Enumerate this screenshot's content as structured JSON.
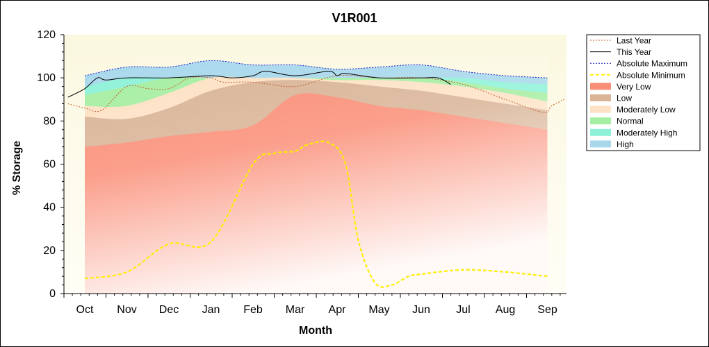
{
  "chart_data": {
    "type": "area",
    "title": "V1R001",
    "xlabel": "Month",
    "ylabel": "% Storage",
    "ylim": [
      0,
      120
    ],
    "yticks": [
      "0",
      "20",
      "40",
      "60",
      "80",
      "100",
      "120"
    ],
    "months": [
      "Oct",
      "Nov",
      "Dec",
      "Jan",
      "Feb",
      "Mar",
      "Apr",
      "May",
      "Jun",
      "Jul",
      "Aug",
      "Sep"
    ],
    "grid": false,
    "legend_placement": "right",
    "bands": [
      {
        "name": "Very Low",
        "color": "#fa8e77",
        "x": [
          0,
          1,
          2,
          3,
          4,
          5,
          6,
          7,
          8,
          9,
          10,
          11
        ],
        "values": [
          68,
          70,
          73,
          75,
          78,
          92,
          91,
          87,
          85,
          82,
          79,
          76
        ]
      },
      {
        "name": "Low",
        "color": "#d9b497",
        "x": [
          0,
          1,
          2,
          3,
          4,
          5,
          6,
          7,
          8,
          9,
          10,
          11
        ],
        "values": [
          82,
          81,
          86,
          94,
          98,
          99,
          98,
          96,
          94,
          91,
          88,
          85
        ]
      },
      {
        "name": "Moderately Low",
        "color": "#fde2c5",
        "x": [
          0,
          1,
          2,
          3,
          4,
          5,
          6,
          7,
          8,
          9,
          10,
          11
        ],
        "values": [
          87,
          87,
          93,
          100,
          100,
          100,
          99,
          99,
          98,
          96,
          93,
          89
        ]
      },
      {
        "name": "Normal",
        "color": "#a6eea3",
        "x": [
          0,
          1,
          2,
          3,
          4,
          5,
          6,
          7,
          8,
          9,
          10,
          11
        ],
        "values": [
          92,
          96,
          100,
          100,
          100,
          100,
          100,
          100,
          100,
          98,
          95,
          93
        ]
      },
      {
        "name": "Moderately High",
        "color": "#8ff2d8",
        "x": [
          0,
          1,
          2,
          3,
          4,
          5,
          6,
          7,
          8,
          9,
          10,
          11
        ],
        "values": [
          96,
          100,
          100,
          100,
          100,
          100,
          100,
          100,
          100,
          100,
          98,
          97
        ]
      },
      {
        "name": "High",
        "color": "#a9d8ec",
        "x": [
          0,
          1,
          2,
          3,
          4,
          5,
          6,
          7,
          8,
          9,
          10,
          11
        ],
        "values": [
          101,
          105,
          105,
          108,
          106,
          106,
          104,
          105,
          106,
          103,
          101,
          100
        ]
      }
    ],
    "series": [
      {
        "name": "Last Year",
        "color": "#c0632a",
        "style": "dotted",
        "x": [
          -0.4,
          0,
          0.4,
          1,
          1.5,
          2,
          2.5,
          3,
          3.3,
          4,
          5,
          6,
          7,
          8,
          9,
          10,
          10.9,
          11.1,
          11.4
        ],
        "values": [
          88,
          86,
          85,
          96,
          95,
          95,
          100,
          100,
          98,
          98,
          96,
          101,
          100,
          100,
          97,
          90,
          84,
          87,
          90
        ]
      },
      {
        "name": "This Year",
        "color": "#000000",
        "style": "solid",
        "x": [
          -0.4,
          0,
          0.3,
          0.5,
          1,
          2,
          3,
          3.5,
          4,
          4.3,
          5,
          5.8,
          6,
          6.2,
          7,
          8,
          8.4,
          8.7
        ],
        "values": [
          91,
          95,
          100,
          99,
          100,
          100,
          101,
          100,
          101,
          103,
          101,
          103,
          101,
          102,
          100,
          100,
          100,
          97
        ]
      },
      {
        "name": "Absolute Maximum",
        "color": "#1a1acc",
        "style": "dotted",
        "x": [
          0,
          1,
          2,
          3,
          4,
          5,
          6,
          7,
          8,
          9,
          10,
          11
        ],
        "values": [
          101,
          105,
          105,
          108,
          106,
          106,
          104,
          105,
          106,
          103,
          101,
          100
        ]
      },
      {
        "name": "Absolute Minimum",
        "color": "#ffee00",
        "style": "dashed",
        "x": [
          0,
          1,
          2,
          3,
          4,
          4.5,
          5,
          5.3,
          5.8,
          6.2,
          6.5,
          6.9,
          7.3,
          7.7,
          8,
          9,
          10,
          11
        ],
        "values": [
          7,
          10,
          23,
          24,
          60,
          65,
          66,
          69,
          70,
          60,
          25,
          5,
          4,
          8,
          9,
          11,
          10,
          8
        ]
      }
    ]
  }
}
